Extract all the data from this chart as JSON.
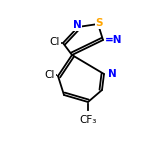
{
  "bg_color": "#ffffff",
  "bond_color": "#000000",
  "atom_colors": {
    "N": "#0000ff",
    "S": "#ffa500",
    "Cl": "#000000",
    "F": "#000000",
    "C": "#000000"
  },
  "figsize": [
    1.52,
    1.52
  ],
  "dpi": 100
}
